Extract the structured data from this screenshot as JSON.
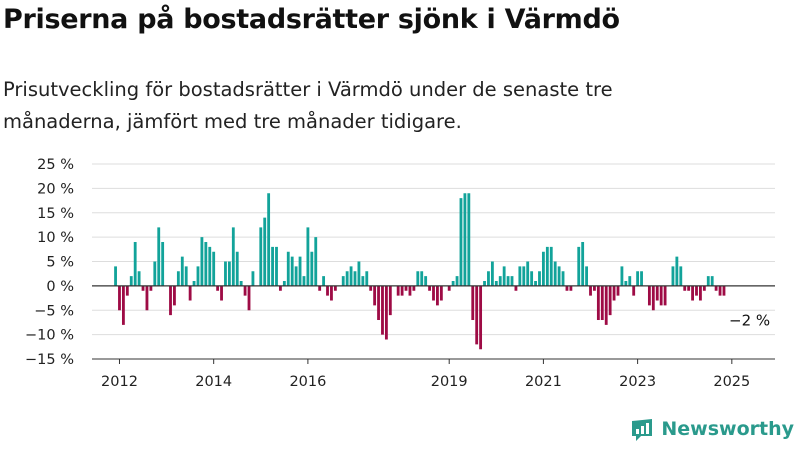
{
  "title": "Priserna på bostadsrätter sjönk i Värmdö",
  "subtitle": "Prisutveckling för bostadsrätter i Värmdö under de senaste tre månaderna, jämfört med tre månader tidigare.",
  "brand": {
    "name": "Newsworthy",
    "icon": "newsworthy-logo-icon"
  },
  "colors": {
    "positive": "#12a39a",
    "negative": "#9e0b45",
    "grid": "#dddddd",
    "axis": "#333333"
  },
  "chart_data": {
    "type": "bar",
    "title": "Priserna på bostadsrätter sjönk i Värmdö",
    "ylabel": "",
    "xlabel": "",
    "ylim": [
      -15,
      25
    ],
    "y_ticks": [
      25,
      20,
      15,
      10,
      5,
      0,
      -5,
      -10,
      -15
    ],
    "y_tick_labels": [
      "25 %",
      "20 %",
      "15 %",
      "10 %",
      "5 %",
      "0 %",
      "−5 %",
      "−10 %",
      "−15 %"
    ],
    "x_range": [
      "2011-06",
      "2025-12"
    ],
    "x_ticks": [
      "2012-01",
      "2014-01",
      "2016-01",
      "2019-01",
      "2021-01",
      "2023-01",
      "2025-01"
    ],
    "x_tick_labels": [
      "2012",
      "2014",
      "2016",
      "2019",
      "2021",
      "2023",
      "2025"
    ],
    "grid": true,
    "annotation": {
      "text": "−2 %",
      "at": "2025-04"
    },
    "series": [
      {
        "start": "2011-12",
        "interval": "month",
        "values": [
          4,
          -5,
          -8,
          -2,
          2,
          9,
          3,
          -1,
          -5,
          -1,
          5,
          12,
          9,
          0,
          -6,
          -4,
          3,
          6,
          4,
          -3,
          1,
          4,
          10,
          9,
          8,
          7,
          -1,
          -3,
          5,
          5,
          12,
          7,
          1,
          -2,
          -5,
          3,
          0,
          12,
          14,
          19,
          8,
          8,
          -1,
          1,
          7,
          6,
          4,
          6,
          2,
          12,
          7,
          10,
          -1,
          2,
          -2,
          -3,
          -1,
          0,
          2,
          3,
          4,
          3,
          5,
          2,
          3,
          -1,
          -4,
          -7,
          -10,
          -11,
          -6,
          0,
          -2,
          -2,
          -1,
          -2,
          -1,
          3,
          3,
          2,
          -1,
          -3,
          -4,
          -3,
          0,
          -1,
          1,
          2,
          18,
          19,
          19,
          -7,
          -12,
          -13,
          1,
          3,
          5,
          1,
          2,
          4,
          2,
          2,
          -1,
          4,
          4,
          5,
          3,
          1,
          3,
          7,
          8,
          8,
          5,
          4,
          3,
          -1,
          -1,
          0,
          8,
          9,
          4,
          -2,
          -1,
          -7,
          -7,
          -8,
          -6,
          -3,
          -2,
          4,
          1,
          2,
          -2,
          3,
          3,
          0,
          -4,
          -5,
          -3,
          -4,
          -4,
          0,
          4,
          6,
          4,
          -1,
          -1,
          -3,
          -2,
          -3,
          -1,
          2,
          2,
          -1,
          -2,
          -2
        ]
      }
    ]
  }
}
